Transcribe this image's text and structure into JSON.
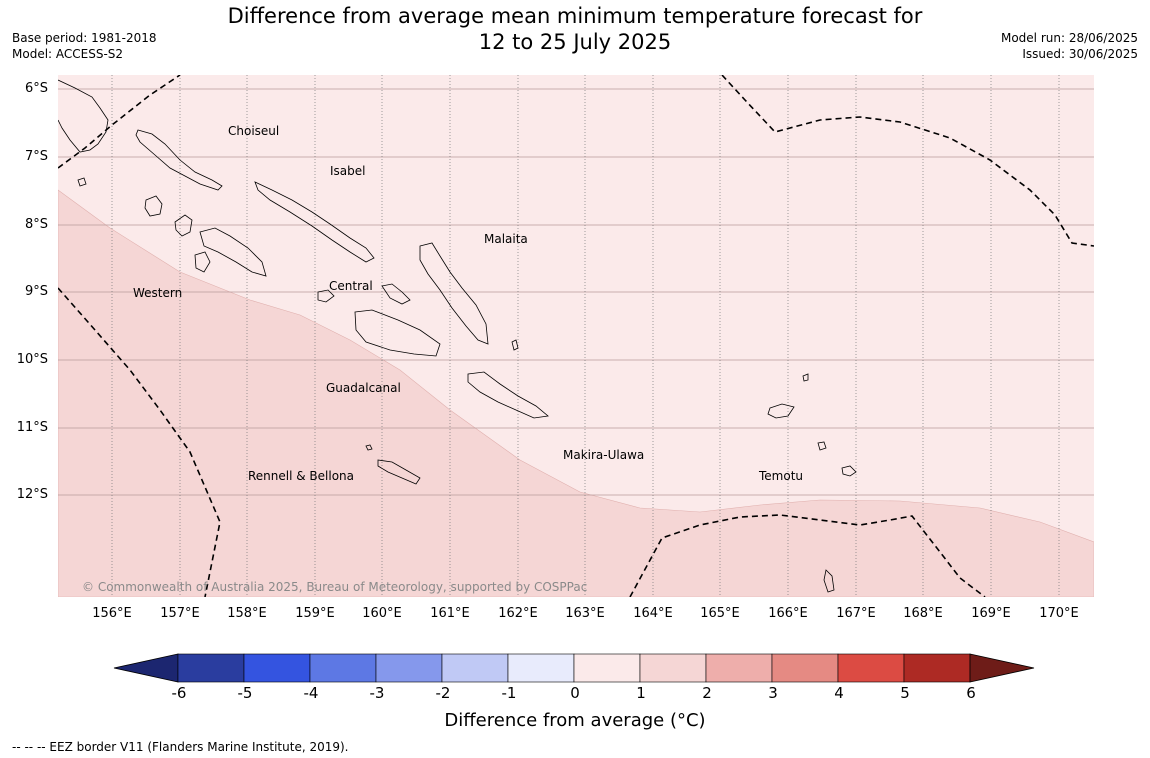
{
  "title_line1": "Difference from average mean minimum temperature forecast for",
  "title_line2": "12 to 25 July 2025",
  "base_period": "Base period: 1981-2018",
  "model": "Model: ACCESS-S2",
  "model_run": "Model run: 28/06/2025",
  "issued": "Issued: 30/06/2025",
  "lat_labels": [
    "6°S",
    "7°S",
    "8°S",
    "9°S",
    "10°S",
    "11°S",
    "12°S"
  ],
  "lon_labels": [
    "156°E",
    "157°E",
    "158°E",
    "159°E",
    "160°E",
    "161°E",
    "162°E",
    "163°E",
    "164°E",
    "165°E",
    "166°E",
    "167°E",
    "168°E",
    "169°E",
    "170°E"
  ],
  "regions": {
    "choiseul": "Choiseul",
    "isabel": "Isabel",
    "malaita": "Malaita",
    "western": "Western",
    "central": "Central",
    "guadalcanal": "Guadalcanal",
    "makira": "Makira-Ulawa",
    "rennell": "Rennell & Bellona",
    "temotu": "Temotu"
  },
  "copyright": "© Commonwealth of Australia 2025, Bureau of Meteorology, supported by COSPPac",
  "colorbar": {
    "ticks": [
      "-6",
      "-5",
      "-4",
      "-3",
      "-2",
      "-1",
      "0",
      "1",
      "2",
      "3",
      "4",
      "5",
      "6"
    ],
    "colors": [
      "#2a3d9f",
      "#3454e0",
      "#5d78e4",
      "#8598ec",
      "#c0c9f5",
      "#e8ebfc",
      "#fbeaea",
      "#f5d6d5",
      "#eeaeab",
      "#e58a83",
      "#dc4b43",
      "#ad2a24"
    ],
    "under_color": "#1c2670",
    "over_color": "#6e1c18",
    "label": "Difference from average (°C)"
  },
  "legend": "--  --  -- EEZ border V11 (Flanders Marine Institute, 2019)."
}
